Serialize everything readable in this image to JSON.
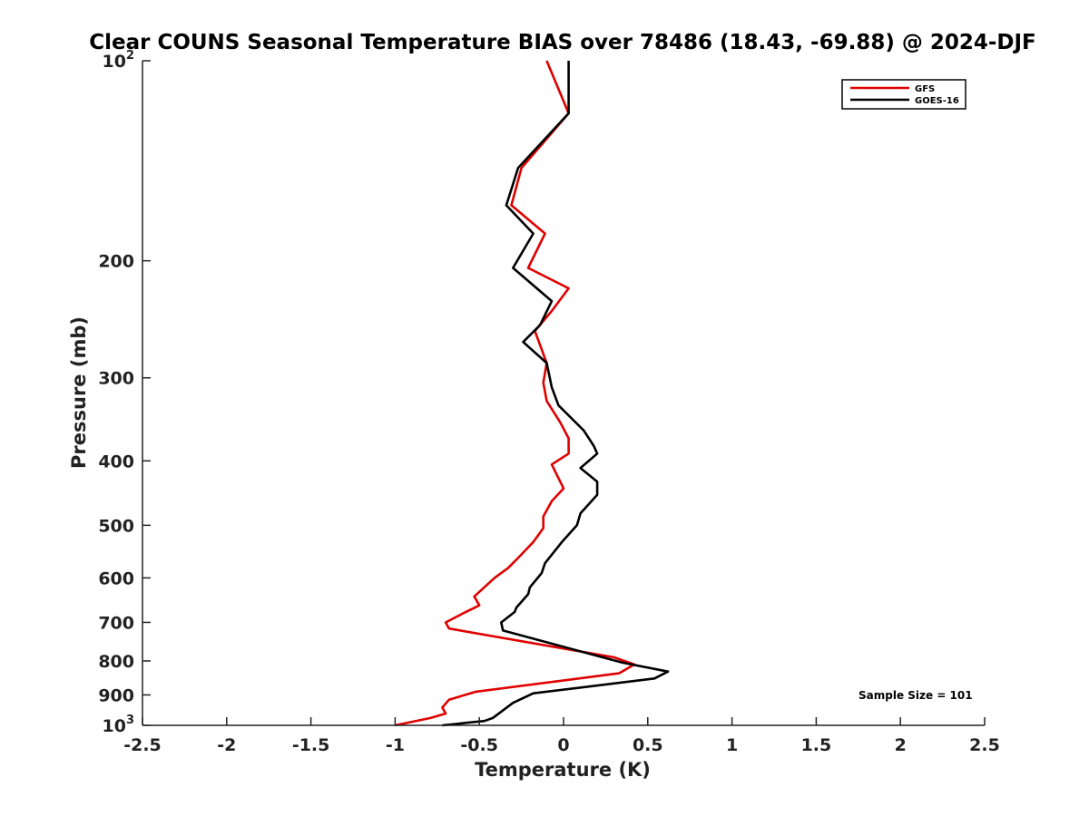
{
  "chart_data": {
    "type": "line",
    "title": "Clear COUNS Seasonal Temperature BIAS over 78486 (18.43, -69.88) @ 2024-DJF",
    "xlabel": "Temperature (K)",
    "ylabel": "Pressure (mb)",
    "xlim": [
      -2.5,
      2.5
    ],
    "ylim": [
      100,
      1000
    ],
    "y_scale": "log",
    "y_reversed": true,
    "x_ticks": [
      "-2.5",
      "-2",
      "-1.5",
      "-1",
      "-0.5",
      "0",
      "0.5",
      "1",
      "1.5",
      "2",
      "2.5"
    ],
    "y_ticks": [
      {
        "value": 100,
        "base": "10",
        "exp": "2"
      },
      {
        "value": 200,
        "label": "200"
      },
      {
        "value": 300,
        "label": "300"
      },
      {
        "value": 400,
        "label": "400"
      },
      {
        "value": 500,
        "label": "500"
      },
      {
        "value": 600,
        "label": "600"
      },
      {
        "value": 700,
        "label": "700"
      },
      {
        "value": 800,
        "label": "800"
      },
      {
        "value": 900,
        "label": "900"
      },
      {
        "value": 1000,
        "base": "10",
        "exp": "3"
      }
    ],
    "legend_position": "top-right",
    "grid": false,
    "annotation": "Sample Size = 101",
    "series": [
      {
        "name": "GFS",
        "color": "#e00000",
        "points": [
          [
            -0.1,
            100
          ],
          [
            0.03,
            120
          ],
          [
            -0.25,
            145
          ],
          [
            -0.31,
            165
          ],
          [
            -0.11,
            182
          ],
          [
            -0.21,
            205
          ],
          [
            0.03,
            220
          ],
          [
            -0.07,
            238
          ],
          [
            -0.17,
            255
          ],
          [
            -0.1,
            285
          ],
          [
            -0.12,
            305
          ],
          [
            -0.1,
            325
          ],
          [
            -0.02,
            350
          ],
          [
            0.03,
            370
          ],
          [
            0.03,
            390
          ],
          [
            -0.07,
            405
          ],
          [
            0.0,
            440
          ],
          [
            -0.07,
            460
          ],
          [
            -0.12,
            485
          ],
          [
            -0.12,
            505
          ],
          [
            -0.18,
            530
          ],
          [
            -0.27,
            560
          ],
          [
            -0.33,
            580
          ],
          [
            -0.41,
            600
          ],
          [
            -0.53,
            640
          ],
          [
            -0.5,
            660
          ],
          [
            -0.58,
            675
          ],
          [
            -0.7,
            700
          ],
          [
            -0.68,
            715
          ],
          [
            0.3,
            790
          ],
          [
            0.42,
            810
          ],
          [
            0.33,
            835
          ],
          [
            -0.52,
            890
          ],
          [
            -0.68,
            915
          ],
          [
            -0.72,
            940
          ],
          [
            -0.7,
            960
          ],
          [
            -0.79,
            975
          ],
          [
            -1.0,
            1000
          ]
        ]
      },
      {
        "name": "GOES-16",
        "color": "#000000",
        "points": [
          [
            0.03,
            100
          ],
          [
            0.03,
            120
          ],
          [
            -0.27,
            145
          ],
          [
            -0.34,
            165
          ],
          [
            -0.18,
            182
          ],
          [
            -0.3,
            205
          ],
          [
            -0.07,
            230
          ],
          [
            -0.14,
            250
          ],
          [
            -0.24,
            265
          ],
          [
            -0.1,
            285
          ],
          [
            -0.07,
            310
          ],
          [
            -0.03,
            330
          ],
          [
            0.12,
            360
          ],
          [
            0.18,
            380
          ],
          [
            0.2,
            390
          ],
          [
            0.1,
            410
          ],
          [
            0.2,
            430
          ],
          [
            0.2,
            450
          ],
          [
            0.1,
            480
          ],
          [
            0.08,
            500
          ],
          [
            -0.01,
            530
          ],
          [
            -0.11,
            570
          ],
          [
            -0.13,
            590
          ],
          [
            -0.2,
            620
          ],
          [
            -0.21,
            635
          ],
          [
            -0.28,
            665
          ],
          [
            -0.29,
            675
          ],
          [
            -0.37,
            700
          ],
          [
            -0.36,
            720
          ],
          [
            0.35,
            805
          ],
          [
            0.62,
            830
          ],
          [
            0.54,
            850
          ],
          [
            -0.18,
            895
          ],
          [
            -0.3,
            925
          ],
          [
            -0.42,
            975
          ],
          [
            -0.47,
            985
          ],
          [
            -0.72,
            1000
          ]
        ]
      }
    ]
  }
}
